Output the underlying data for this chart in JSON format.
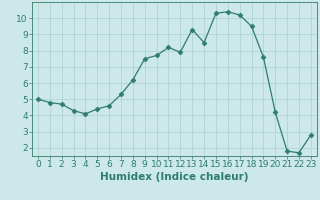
{
  "xlabel": "Humidex (Indice chaleur)",
  "x": [
    0,
    1,
    2,
    3,
    4,
    5,
    6,
    7,
    8,
    9,
    10,
    11,
    12,
    13,
    14,
    15,
    16,
    17,
    18,
    19,
    20,
    21,
    22,
    23
  ],
  "y": [
    5.0,
    4.8,
    4.7,
    4.3,
    4.1,
    4.4,
    4.6,
    5.3,
    6.2,
    7.5,
    7.7,
    8.2,
    7.9,
    9.3,
    8.5,
    10.3,
    10.4,
    10.2,
    9.5,
    7.6,
    4.2,
    1.8,
    1.7,
    2.8
  ],
  "line_color": "#2e7d6e",
  "marker": "D",
  "marker_size": 2.5,
  "bg_color": "#cce8e8",
  "grid_color": "#afd0d0",
  "xlim": [
    -0.5,
    23.5
  ],
  "ylim": [
    1.5,
    11.0
  ],
  "yticks": [
    2,
    3,
    4,
    5,
    6,
    7,
    8,
    9,
    10
  ],
  "xticks": [
    0,
    1,
    2,
    3,
    4,
    5,
    6,
    7,
    8,
    9,
    10,
    11,
    12,
    13,
    14,
    15,
    16,
    17,
    18,
    19,
    20,
    21,
    22,
    23
  ],
  "tick_fontsize": 6.5,
  "xlabel_fontsize": 7.5
}
